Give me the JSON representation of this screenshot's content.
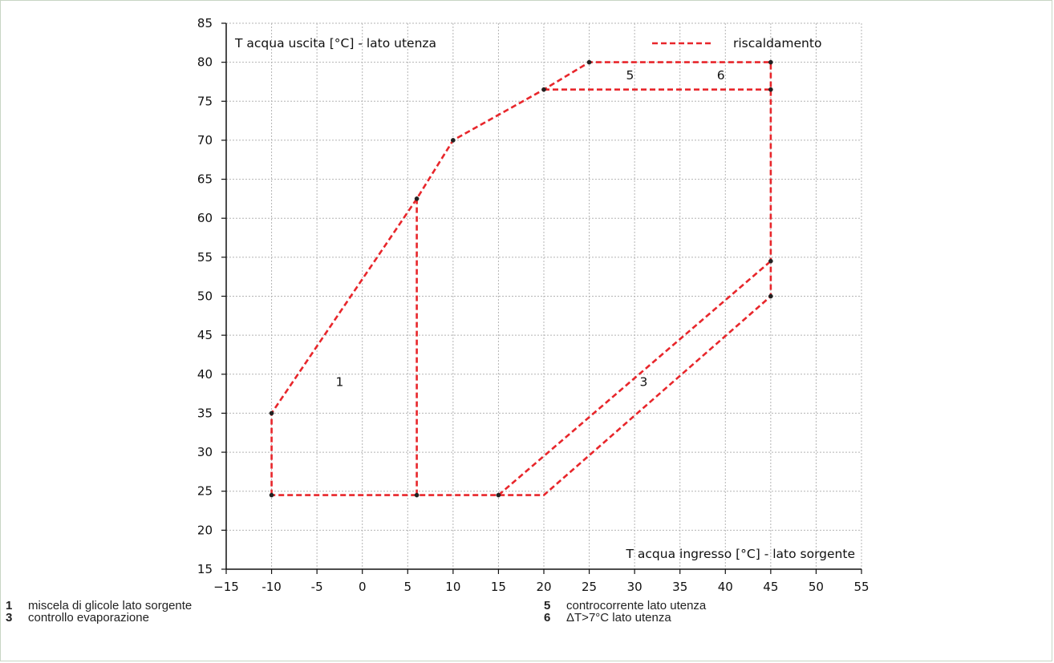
{
  "chart_data": {
    "type": "line",
    "ylabel": "T acqua uscita [°C] - lato utenza",
    "xlabel": "T acqua ingresso [°C] - lato sorgente",
    "xlim": [
      -15,
      55
    ],
    "ylim": [
      15,
      85
    ],
    "x_ticks": [
      -15,
      -10,
      -5,
      0,
      5,
      10,
      15,
      20,
      25,
      30,
      35,
      40,
      45,
      50,
      55
    ],
    "y_ticks": [
      15,
      20,
      25,
      30,
      35,
      40,
      45,
      50,
      55,
      60,
      65,
      70,
      75,
      80,
      85
    ],
    "x_tick_labels": [
      "−15",
      "-10",
      "-5",
      "0",
      "5",
      "10",
      "15",
      "20",
      "25",
      "30",
      "35",
      "40",
      "45",
      "50",
      "55"
    ],
    "y_tick_labels": [
      "15",
      "20",
      "25",
      "30",
      "35",
      "40",
      "45",
      "50",
      "55",
      "60",
      "65",
      "70",
      "75",
      "80",
      "85"
    ],
    "grid": true,
    "legend": {
      "position": "top-right",
      "entries": [
        {
          "label": "riscaldamento",
          "color": "#e8262b",
          "style": "dashed"
        }
      ]
    },
    "series": [
      {
        "name": "riscaldamento",
        "color": "#e8262b",
        "segments": [
          [
            [
              -10,
              24.5
            ],
            [
              -10,
              35
            ],
            [
              6,
              62.5
            ],
            [
              10,
              70
            ],
            [
              20,
              76.5
            ],
            [
              25,
              80
            ],
            [
              45,
              80
            ],
            [
              45,
              50
            ],
            [
              20,
              24.5
            ],
            [
              -10,
              24.5
            ]
          ],
          [
            [
              6,
              24.5
            ],
            [
              6,
              62.5
            ]
          ],
          [
            [
              20,
              76.5
            ],
            [
              45,
              76.5
            ]
          ],
          [
            [
              15,
              24.5
            ],
            [
              45,
              54.5
            ]
          ]
        ],
        "markers": [
          [
            -10,
            24.5
          ],
          [
            -10,
            35
          ],
          [
            6,
            62.5
          ],
          [
            10,
            70
          ],
          [
            20,
            76.5
          ],
          [
            25,
            80
          ],
          [
            45,
            80
          ],
          [
            45,
            76.5
          ],
          [
            45,
            54.5
          ],
          [
            45,
            50
          ],
          [
            6,
            24.5
          ],
          [
            15,
            24.5
          ]
        ]
      }
    ],
    "annotations": [
      {
        "text": "1",
        "x": -2.5,
        "y": 38.5
      },
      {
        "text": "3",
        "x": 31,
        "y": 38.5
      },
      {
        "text": "5",
        "x": 29.5,
        "y": 77.8
      },
      {
        "text": "6",
        "x": 39.5,
        "y": 77.8
      }
    ]
  },
  "notes": [
    {
      "num": "1",
      "text": "miscela di glicole lato sorgente"
    },
    {
      "num": "3",
      "text": "controllo evaporazione"
    },
    {
      "num": "5",
      "text": "controcorrente lato utenza"
    },
    {
      "num": "6",
      "text": "ΔT>7°C lato utenza"
    }
  ],
  "colors": {
    "boundary": "#e8262b",
    "grid": "#b4b4b4",
    "frame": "#c8d5c4"
  }
}
